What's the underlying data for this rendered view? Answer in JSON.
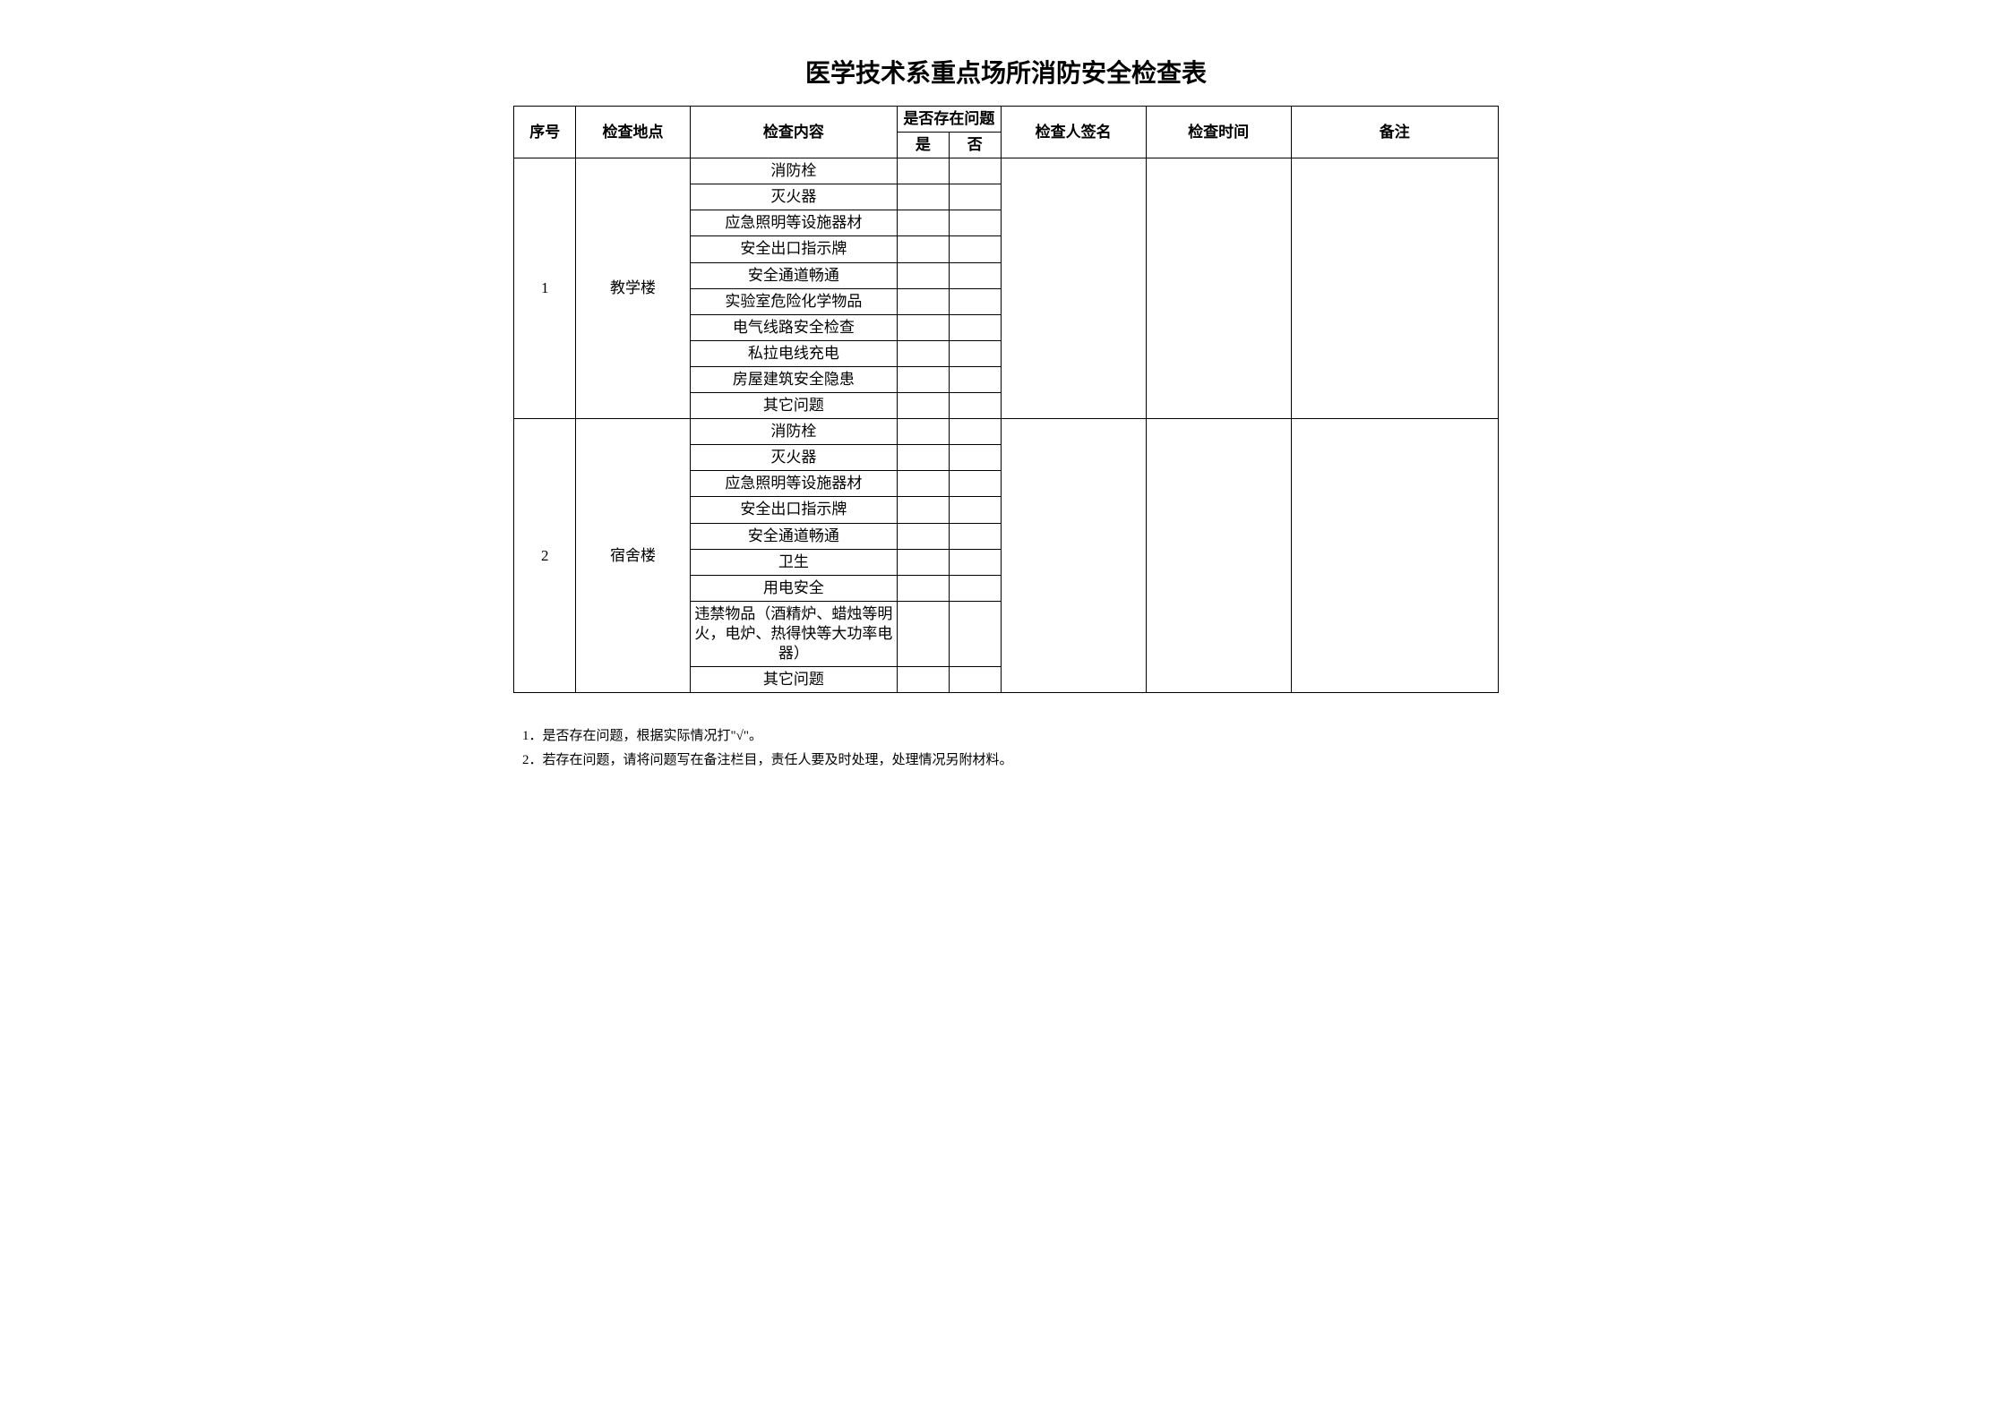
{
  "title": "医学技术系重点场所消防安全检查表",
  "headers": {
    "seq": "序号",
    "location": "检查地点",
    "content": "检查内容",
    "hasIssue": "是否存在问题",
    "yes": "是",
    "no": "否",
    "signature": "检查人签名",
    "time": "检查时间",
    "remark": "备注"
  },
  "sections": [
    {
      "seq": "1",
      "location": "教学楼",
      "items": [
        "消防栓",
        "灭火器",
        "应急照明等设施器材",
        "安全出口指示牌",
        "安全通道畅通",
        "实验室危险化学物品",
        "电气线路安全检查",
        "私拉电线充电",
        "房屋建筑安全隐患",
        "其它问题"
      ]
    },
    {
      "seq": "2",
      "location": "宿舍楼",
      "items": [
        "消防栓",
        "灭火器",
        "应急照明等设施器材",
        "安全出口指示牌",
        "安全通道畅通",
        "卫生",
        "用电安全",
        "违禁物品（酒精炉、蜡烛等明火，电炉、热得快等大功率电器）",
        "其它问题"
      ]
    }
  ],
  "notes": [
    "1．是否存在问题，根据实际情况打\"√\"。",
    "2．若存在问题，请将问题写在备注栏目，责任人要及时处理，处理情况另附材料。"
  ]
}
